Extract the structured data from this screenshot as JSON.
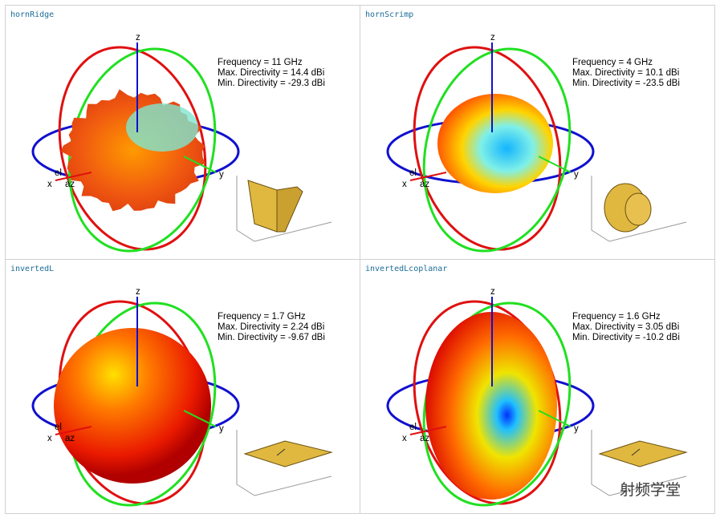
{
  "cells": [
    {
      "name": "hornRidge",
      "axes": {
        "z": "z",
        "y": "y",
        "x": "x",
        "el": "el",
        "az": "az"
      },
      "info": [
        "Frequency = 11 GHz",
        "Max. Directivity = 14.4 dBi",
        "Min. Directivity = -29.3 dBi"
      ]
    },
    {
      "name": "hornScrimp",
      "axes": {
        "z": "z",
        "y": "y",
        "x": "x",
        "el": "el",
        "az": "az"
      },
      "info": [
        "Frequency = 4 GHz",
        "Max. Directivity = 10.1 dBi",
        "Min. Directivity = -23.5 dBi"
      ]
    },
    {
      "name": "invertedL",
      "axes": {
        "z": "z",
        "y": "y",
        "x": "x",
        "el": "el",
        "az": "az"
      },
      "info": [
        "Frequency = 1.7 GHz",
        "Max. Directivity = 2.24 dBi",
        "Min. Directivity = -9.67 dBi"
      ]
    },
    {
      "name": "invertedLcoplanar",
      "axes": {
        "z": "z",
        "y": "y",
        "x": "x",
        "el": "el",
        "az": "az"
      },
      "info": [
        "Frequency = 1.6 GHz",
        "Max. Directivity = 3.05 dBi",
        "Min. Directivity = -10.2 dBi"
      ]
    }
  ],
  "watermark": "射频学堂"
}
